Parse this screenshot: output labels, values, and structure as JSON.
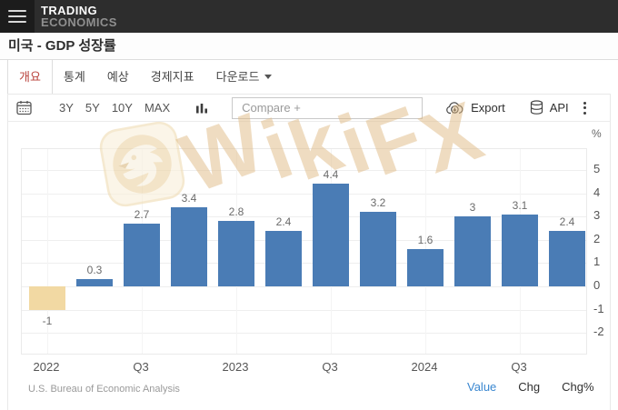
{
  "header": {
    "brand_line1": "TRADING",
    "brand_line2": "ECONOMICS"
  },
  "page_title": "미국 - GDP 성장률",
  "tabs": [
    {
      "label": "개요",
      "active": true
    },
    {
      "label": "통계",
      "active": false
    },
    {
      "label": "예상",
      "active": false
    },
    {
      "label": "경제지표",
      "active": false
    },
    {
      "label": "다운로드",
      "active": false,
      "has_dropdown": true
    }
  ],
  "toolbar": {
    "ranges": [
      "3Y",
      "5Y",
      "10Y",
      "MAX"
    ],
    "compare_placeholder": "Compare +",
    "export_label": "Export",
    "api_label": "API"
  },
  "watermark": {
    "text": "WikiFX"
  },
  "chart_data": {
    "type": "bar",
    "title": "미국 - GDP 성장률",
    "values": [
      -1,
      0.3,
      2.7,
      3.4,
      2.8,
      2.4,
      4.4,
      3.2,
      1.6,
      3,
      3.1,
      2.4
    ],
    "bar_labels": [
      "-1",
      "0.3",
      "2.7",
      "3.4",
      "2.8",
      "2.4",
      "4.4",
      "3.2",
      "1.6",
      "3",
      "3.1",
      "2.4"
    ],
    "x_ticks": [
      {
        "label": "2022",
        "bar_index": 0
      },
      {
        "label": "Q3",
        "bar_index": 2
      },
      {
        "label": "2023",
        "bar_index": 4
      },
      {
        "label": "Q3",
        "bar_index": 6
      },
      {
        "label": "2024",
        "bar_index": 8
      },
      {
        "label": "Q3",
        "bar_index": 10
      }
    ],
    "y_ticks": [
      5,
      4,
      3,
      2,
      1,
      0,
      -1,
      -2
    ],
    "y_axis_unit": "%",
    "y_axis_side": "right",
    "ylim": [
      -3,
      5.9
    ],
    "grid": true,
    "legend_position": "none",
    "bar_color": "#4a7cb5",
    "highlight_bar_index": 0,
    "highlight_color": "#f2d9a3"
  },
  "footer": {
    "source": "U.S. Bureau of Economic Analysis",
    "links": [
      {
        "label": "Value",
        "active": true
      },
      {
        "label": "Chg",
        "active": false
      },
      {
        "label": "Chg%",
        "active": false
      }
    ]
  }
}
